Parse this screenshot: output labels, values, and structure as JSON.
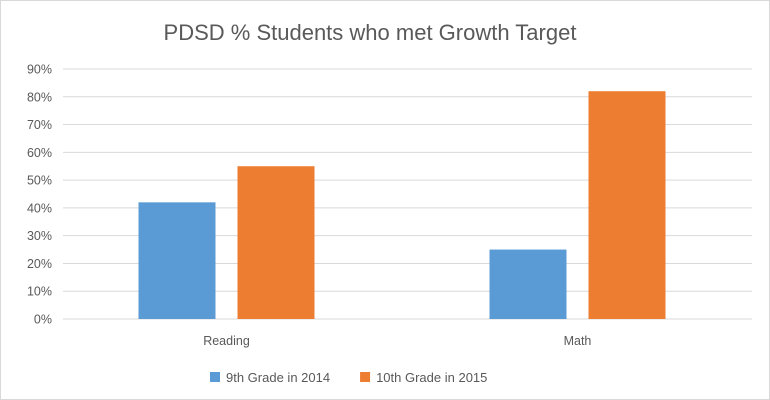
{
  "chart_data": {
    "type": "bar",
    "title": "PDSD % Students who met Growth Target",
    "categories": [
      "Reading",
      "Math"
    ],
    "series": [
      {
        "name": "9th Grade in 2014",
        "values": [
          42,
          25
        ],
        "color": "#5b9bd5"
      },
      {
        "name": "10th Grade in 2015",
        "values": [
          55,
          82
        ],
        "color": "#ed7d31"
      }
    ],
    "yticks": [
      "0%",
      "10%",
      "20%",
      "30%",
      "40%",
      "50%",
      "60%",
      "70%",
      "80%",
      "90%"
    ],
    "ylim": [
      0,
      90
    ],
    "xlabel": "",
    "ylabel": "",
    "grid": true,
    "legend_position": "bottom"
  }
}
